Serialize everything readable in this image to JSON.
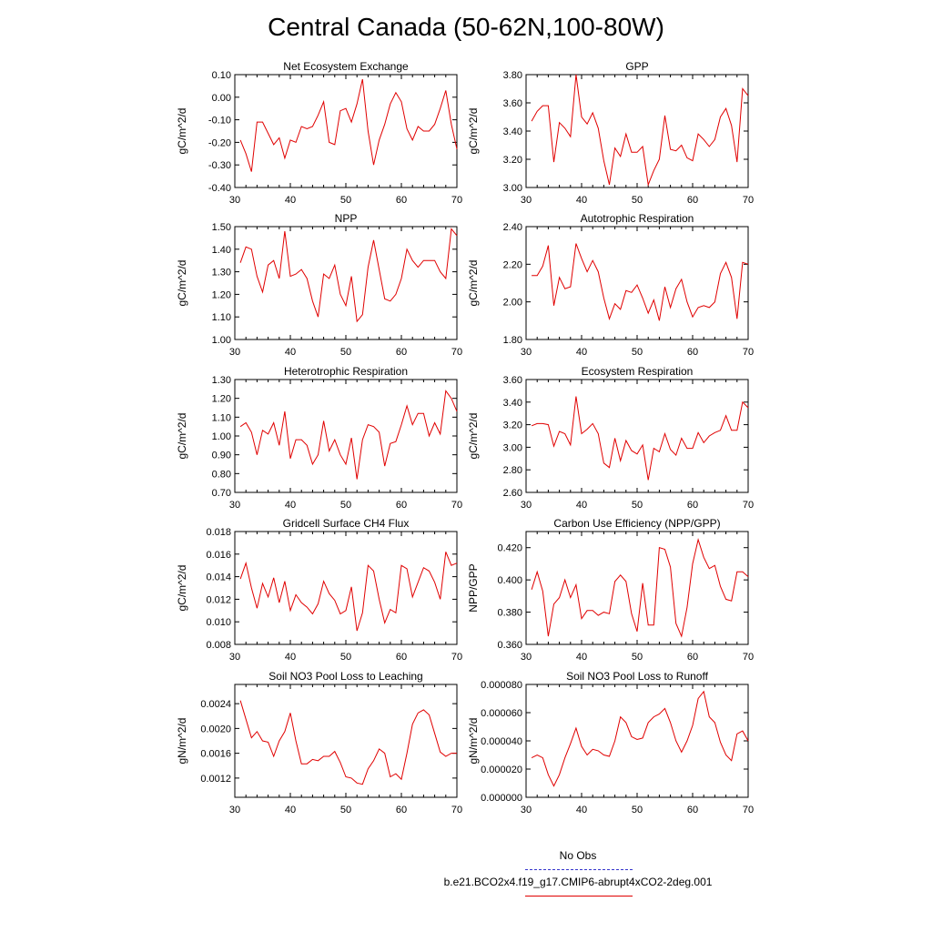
{
  "title": "Central Canada (50-62N,100-80W)",
  "colors": {
    "series": "#e00000",
    "obs": "#3333cc",
    "axis": "#000000"
  },
  "legend": {
    "obs_label": "No Obs",
    "model_label": "b.e21.BCO2x4.f19_g17.CMIP6-abrupt4xCO2-2deg.001"
  },
  "chart_data": [
    {
      "type": "line",
      "title": "Net Ecosystem Exchange",
      "ylabel": "gC/m^2/d",
      "xlim": [
        31,
        70
      ],
      "xticks": [
        30,
        40,
        50,
        60,
        70
      ],
      "ylim": [
        -0.4,
        0.1
      ],
      "yticks": [
        "0.10",
        "0.00",
        "-0.10",
        "-0.20",
        "-0.30",
        "-0.40"
      ],
      "x": [
        31,
        32,
        33,
        34,
        35,
        36,
        37,
        38,
        39,
        40,
        41,
        42,
        43,
        44,
        45,
        46,
        47,
        48,
        49,
        50,
        51,
        52,
        53,
        54,
        55,
        56,
        57,
        58,
        59,
        60,
        61,
        62,
        63,
        64,
        65,
        66,
        67,
        68,
        69,
        70
      ],
      "values": [
        -0.19,
        -0.25,
        -0.33,
        -0.11,
        -0.11,
        -0.16,
        -0.21,
        -0.18,
        -0.27,
        -0.19,
        -0.2,
        -0.13,
        -0.14,
        -0.13,
        -0.08,
        -0.02,
        -0.2,
        -0.21,
        -0.06,
        -0.05,
        -0.11,
        -0.03,
        0.08,
        -0.15,
        -0.3,
        -0.19,
        -0.12,
        -0.03,
        0.02,
        -0.02,
        -0.14,
        -0.19,
        -0.13,
        -0.15,
        -0.15,
        -0.12,
        -0.05,
        0.03,
        -0.12,
        -0.23
      ]
    },
    {
      "type": "line",
      "title": "GPP",
      "ylabel": "gC/m^2/d",
      "xlim": [
        31,
        70
      ],
      "xticks": [
        30,
        40,
        50,
        60,
        70
      ],
      "ylim": [
        3.0,
        3.8
      ],
      "yticks": [
        "3.80",
        "3.60",
        "3.40",
        "3.20",
        "3.00"
      ],
      "x": [
        31,
        32,
        33,
        34,
        35,
        36,
        37,
        38,
        39,
        40,
        41,
        42,
        43,
        44,
        45,
        46,
        47,
        48,
        49,
        50,
        51,
        52,
        53,
        54,
        55,
        56,
        57,
        58,
        59,
        60,
        61,
        62,
        63,
        64,
        65,
        66,
        67,
        68,
        69,
        70
      ],
      "values": [
        3.47,
        3.54,
        3.58,
        3.58,
        3.18,
        3.46,
        3.42,
        3.36,
        3.8,
        3.5,
        3.45,
        3.53,
        3.42,
        3.19,
        3.02,
        3.28,
        3.22,
        3.38,
        3.25,
        3.25,
        3.29,
        3.02,
        3.12,
        3.2,
        3.51,
        3.27,
        3.26,
        3.3,
        3.21,
        3.19,
        3.38,
        3.34,
        3.29,
        3.34,
        3.5,
        3.56,
        3.44,
        3.18,
        3.7,
        3.65
      ]
    },
    {
      "type": "line",
      "title": "NPP",
      "ylabel": "gC/m^2/d",
      "xlim": [
        31,
        70
      ],
      "xticks": [
        30,
        40,
        50,
        60,
        70
      ],
      "ylim": [
        1.0,
        1.5
      ],
      "yticks": [
        "1.50",
        "1.40",
        "1.30",
        "1.20",
        "1.10",
        "1.00"
      ],
      "x": [
        31,
        32,
        33,
        34,
        35,
        36,
        37,
        38,
        39,
        40,
        41,
        42,
        43,
        44,
        45,
        46,
        47,
        48,
        49,
        50,
        51,
        52,
        53,
        54,
        55,
        56,
        57,
        58,
        59,
        60,
        61,
        62,
        63,
        64,
        65,
        66,
        67,
        68,
        69,
        70
      ],
      "values": [
        1.34,
        1.41,
        1.4,
        1.28,
        1.21,
        1.33,
        1.35,
        1.27,
        1.48,
        1.28,
        1.29,
        1.31,
        1.27,
        1.17,
        1.1,
        1.29,
        1.27,
        1.33,
        1.2,
        1.15,
        1.28,
        1.08,
        1.11,
        1.32,
        1.44,
        1.31,
        1.18,
        1.17,
        1.2,
        1.27,
        1.4,
        1.35,
        1.32,
        1.35,
        1.35,
        1.35,
        1.3,
        1.27,
        1.49,
        1.46
      ]
    },
    {
      "type": "line",
      "title": "Autotrophic Respiration",
      "ylabel": "gC/m^2/d",
      "xlim": [
        31,
        70
      ],
      "xticks": [
        30,
        40,
        50,
        60,
        70
      ],
      "ylim": [
        1.8,
        2.4
      ],
      "yticks": [
        "2.40",
        "2.20",
        "2.00",
        "1.80"
      ],
      "x": [
        31,
        32,
        33,
        34,
        35,
        36,
        37,
        38,
        39,
        40,
        41,
        42,
        43,
        44,
        45,
        46,
        47,
        48,
        49,
        50,
        51,
        52,
        53,
        54,
        55,
        56,
        57,
        58,
        59,
        60,
        61,
        62,
        63,
        64,
        65,
        66,
        67,
        68,
        69,
        70
      ],
      "values": [
        2.14,
        2.14,
        2.19,
        2.3,
        1.98,
        2.13,
        2.07,
        2.08,
        2.31,
        2.23,
        2.16,
        2.22,
        2.16,
        2.02,
        1.91,
        1.99,
        1.96,
        2.06,
        2.05,
        2.09,
        2.02,
        1.94,
        2.01,
        1.9,
        2.08,
        1.97,
        2.07,
        2.12,
        2.0,
        1.92,
        1.97,
        1.98,
        1.97,
        2.0,
        2.15,
        2.21,
        2.13,
        1.91,
        2.21,
        2.2
      ]
    },
    {
      "type": "line",
      "title": "Heterotrophic Respiration",
      "ylabel": "gC/m^2/d",
      "xlim": [
        31,
        70
      ],
      "xticks": [
        30,
        40,
        50,
        60,
        70
      ],
      "ylim": [
        0.7,
        1.3
      ],
      "yticks": [
        "1.30",
        "1.20",
        "1.10",
        "1.00",
        "0.90",
        "0.80",
        "0.70"
      ],
      "x": [
        31,
        32,
        33,
        34,
        35,
        36,
        37,
        38,
        39,
        40,
        41,
        42,
        43,
        44,
        45,
        46,
        47,
        48,
        49,
        50,
        51,
        52,
        53,
        54,
        55,
        56,
        57,
        58,
        59,
        60,
        61,
        62,
        63,
        64,
        65,
        66,
        67,
        68,
        69,
        70
      ],
      "values": [
        1.05,
        1.07,
        1.02,
        0.9,
        1.03,
        1.01,
        1.07,
        0.95,
        1.13,
        0.88,
        0.98,
        0.98,
        0.95,
        0.85,
        0.9,
        1.08,
        0.92,
        0.98,
        0.9,
        0.85,
        0.99,
        0.77,
        0.98,
        1.06,
        1.05,
        1.02,
        0.84,
        0.96,
        0.97,
        1.06,
        1.16,
        1.06,
        1.12,
        1.12,
        1.0,
        1.07,
        1.01,
        1.24,
        1.2,
        1.13
      ]
    },
    {
      "type": "line",
      "title": "Ecosystem Respiration",
      "ylabel": "gC/m^2/d",
      "xlim": [
        31,
        70
      ],
      "xticks": [
        30,
        40,
        50,
        60,
        70
      ],
      "ylim": [
        2.6,
        3.6
      ],
      "yticks": [
        "3.60",
        "3.40",
        "3.20",
        "3.00",
        "2.80",
        "2.60"
      ],
      "x": [
        31,
        32,
        33,
        34,
        35,
        36,
        37,
        38,
        39,
        40,
        41,
        42,
        43,
        44,
        45,
        46,
        47,
        48,
        49,
        50,
        51,
        52,
        53,
        54,
        55,
        56,
        57,
        58,
        59,
        60,
        61,
        62,
        63,
        64,
        65,
        66,
        67,
        68,
        69,
        70
      ],
      "values": [
        3.19,
        3.21,
        3.21,
        3.2,
        3.01,
        3.14,
        3.12,
        3.02,
        3.45,
        3.12,
        3.16,
        3.21,
        3.12,
        2.86,
        2.82,
        3.08,
        2.88,
        3.06,
        2.97,
        2.94,
        3.02,
        2.71,
        2.99,
        2.96,
        3.12,
        2.98,
        2.93,
        3.08,
        2.99,
        2.99,
        3.13,
        3.04,
        3.1,
        3.13,
        3.15,
        3.28,
        3.15,
        3.15,
        3.4,
        3.35
      ]
    },
    {
      "type": "line",
      "title": "Gridcell Surface CH4 Flux",
      "ylabel": "gC/m^2/d",
      "xlim": [
        31,
        70
      ],
      "xticks": [
        30,
        40,
        50,
        60,
        70
      ],
      "ylim": [
        0.008,
        0.018
      ],
      "yticks": [
        "0.018",
        "0.016",
        "0.014",
        "0.012",
        "0.010",
        "0.008"
      ],
      "x": [
        31,
        32,
        33,
        34,
        35,
        36,
        37,
        38,
        39,
        40,
        41,
        42,
        43,
        44,
        45,
        46,
        47,
        48,
        49,
        50,
        51,
        52,
        53,
        54,
        55,
        56,
        57,
        58,
        59,
        60,
        61,
        62,
        63,
        64,
        65,
        66,
        67,
        68,
        69,
        70
      ],
      "values": [
        0.0138,
        0.0152,
        0.013,
        0.0112,
        0.0134,
        0.0122,
        0.0139,
        0.0117,
        0.0136,
        0.011,
        0.0124,
        0.0117,
        0.0113,
        0.0107,
        0.0116,
        0.0136,
        0.0125,
        0.0119,
        0.0107,
        0.011,
        0.0131,
        0.0092,
        0.0108,
        0.015,
        0.0145,
        0.012,
        0.0099,
        0.0111,
        0.0108,
        0.015,
        0.0147,
        0.0122,
        0.0135,
        0.0148,
        0.0145,
        0.0135,
        0.012,
        0.0162,
        0.015,
        0.0152
      ]
    },
    {
      "type": "line",
      "title": "Carbon Use Efficiency (NPP/GPP)",
      "ylabel": "NPP/GPP",
      "xlim": [
        31,
        70
      ],
      "xticks": [
        30,
        40,
        50,
        60,
        70
      ],
      "ylim": [
        0.36,
        0.43
      ],
      "yticks": [
        "0.420",
        "0.400",
        "0.380",
        "0.360"
      ],
      "x": [
        31,
        32,
        33,
        34,
        35,
        36,
        37,
        38,
        39,
        40,
        41,
        42,
        43,
        44,
        45,
        46,
        47,
        48,
        49,
        50,
        51,
        52,
        53,
        54,
        55,
        56,
        57,
        58,
        59,
        60,
        61,
        62,
        63,
        64,
        65,
        66,
        67,
        68,
        69,
        70
      ],
      "values": [
        0.394,
        0.405,
        0.393,
        0.365,
        0.385,
        0.389,
        0.4,
        0.389,
        0.397,
        0.376,
        0.381,
        0.381,
        0.378,
        0.38,
        0.379,
        0.399,
        0.403,
        0.399,
        0.379,
        0.368,
        0.398,
        0.372,
        0.372,
        0.42,
        0.419,
        0.408,
        0.373,
        0.365,
        0.383,
        0.41,
        0.425,
        0.414,
        0.407,
        0.409,
        0.396,
        0.388,
        0.387,
        0.405,
        0.405,
        0.402
      ]
    },
    {
      "type": "line",
      "title": "Soil NO3 Pool Loss to Leaching",
      "ylabel": "gN/m^2/d",
      "xlim": [
        31,
        70
      ],
      "xticks": [
        30,
        40,
        50,
        60,
        70
      ],
      "ylim": [
        0.00089,
        0.00271
      ],
      "yticks": [
        "0.0024",
        "0.0020",
        "0.0016",
        "0.0012"
      ],
      "ytick_values": [
        0.0024,
        0.002,
        0.0016,
        0.0012
      ],
      "x": [
        31,
        32,
        33,
        34,
        35,
        36,
        37,
        38,
        39,
        40,
        41,
        42,
        43,
        44,
        45,
        46,
        47,
        48,
        49,
        50,
        51,
        52,
        53,
        54,
        55,
        56,
        57,
        58,
        59,
        60,
        61,
        62,
        63,
        64,
        65,
        66,
        67,
        68,
        69,
        70
      ],
      "values": [
        0.00245,
        0.00215,
        0.00185,
        0.00195,
        0.0018,
        0.00178,
        0.00155,
        0.0018,
        0.00195,
        0.00225,
        0.0018,
        0.00143,
        0.00143,
        0.0015,
        0.00148,
        0.00155,
        0.00155,
        0.00163,
        0.00145,
        0.00122,
        0.0012,
        0.00112,
        0.0011,
        0.00135,
        0.00148,
        0.00167,
        0.0016,
        0.00122,
        0.00127,
        0.00118,
        0.0016,
        0.00207,
        0.00225,
        0.0023,
        0.00222,
        0.00192,
        0.00162,
        0.00155,
        0.0016,
        0.0016
      ]
    },
    {
      "type": "line",
      "title": "Soil NO3 Pool Loss to Runoff",
      "ylabel": "gN/m^2/d",
      "xlim": [
        31,
        70
      ],
      "xticks": [
        30,
        40,
        50,
        60,
        70
      ],
      "ylim": [
        0.0,
        8e-05
      ],
      "yticks": [
        "0.000080",
        "0.000060",
        "0.000040",
        "0.000020",
        "0.000000"
      ],
      "x": [
        31,
        32,
        33,
        34,
        35,
        36,
        37,
        38,
        39,
        40,
        41,
        42,
        43,
        44,
        45,
        46,
        47,
        48,
        49,
        50,
        51,
        52,
        53,
        54,
        55,
        56,
        57,
        58,
        59,
        60,
        61,
        62,
        63,
        64,
        65,
        66,
        67,
        68,
        69,
        70
      ],
      "values": [
        2.8e-05,
        3e-05,
        2.8e-05,
        1.6e-05,
        8e-06,
        1.6e-05,
        2.8e-05,
        3.8e-05,
        4.9e-05,
        3.6e-05,
        3e-05,
        3.4e-05,
        3.3e-05,
        3e-05,
        2.9e-05,
        4e-05,
        5.7e-05,
        5.3e-05,
        4.3e-05,
        4.1e-05,
        4.2e-05,
        5.3e-05,
        5.7e-05,
        5.9e-05,
        6.3e-05,
        5.3e-05,
        4e-05,
        3.2e-05,
        4e-05,
        5.1e-05,
        7e-05,
        7.5e-05,
        5.7e-05,
        5.3e-05,
        3.9e-05,
        3e-05,
        2.6e-05,
        4.5e-05,
        4.7e-05,
        4e-05
      ]
    }
  ]
}
